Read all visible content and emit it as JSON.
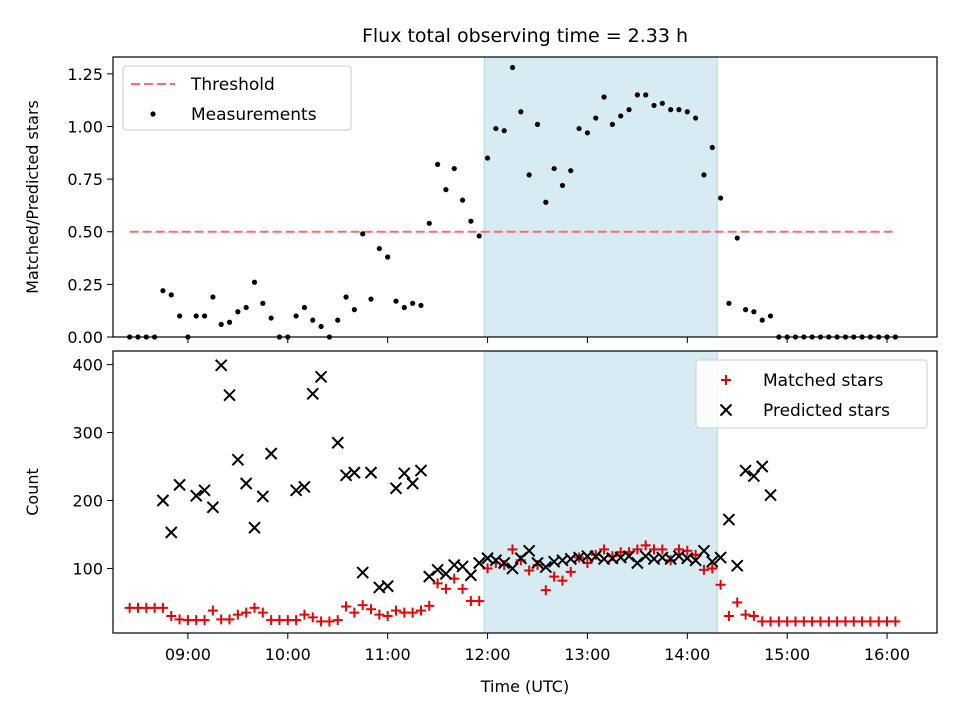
{
  "title": "Flux total observing time = 2.33 h",
  "colors": {
    "threshold": "#ff6b6b",
    "measurement": "#000000",
    "matched": "#ee0000",
    "predicted": "#000000",
    "shade": "#add8e6"
  },
  "chart_data": [
    {
      "type": "scatter",
      "panel": "top",
      "ylabel": "Matched/Predicted stars",
      "ylim": [
        0,
        1.33
      ],
      "yticks": [
        "0.00",
        "0.25",
        "0.50",
        "0.75",
        "1.00",
        "1.25"
      ],
      "xlim": [
        "08:15",
        "16:30"
      ],
      "grid": false,
      "legend_position": "top-left",
      "threshold": {
        "name": "Threshold",
        "value": 0.5,
        "x_range": [
          "08:25",
          "16:05"
        ]
      },
      "shaded_interval": [
        "11:58",
        "14:18"
      ],
      "series": [
        {
          "name": "Measurements",
          "points": [
            [
              "08:25",
              0
            ],
            [
              "08:30",
              0
            ],
            [
              "08:35",
              0
            ],
            [
              "08:40",
              0
            ],
            [
              "08:45",
              0.22
            ],
            [
              "08:50",
              0.2
            ],
            [
              "08:55",
              0.1
            ],
            [
              "09:00",
              0
            ],
            [
              "09:05",
              0.1
            ],
            [
              "09:10",
              0.1
            ],
            [
              "09:15",
              0.19
            ],
            [
              "09:20",
              0.06
            ],
            [
              "09:25",
              0.07
            ],
            [
              "09:30",
              0.12
            ],
            [
              "09:35",
              0.14
            ],
            [
              "09:40",
              0.26
            ],
            [
              "09:45",
              0.16
            ],
            [
              "09:50",
              0.09
            ],
            [
              "09:55",
              0
            ],
            [
              "10:00",
              0
            ],
            [
              "10:05",
              0.1
            ],
            [
              "10:10",
              0.14
            ],
            [
              "10:15",
              0.08
            ],
            [
              "10:20",
              0.05
            ],
            [
              "10:25",
              0
            ],
            [
              "10:30",
              0.08
            ],
            [
              "10:35",
              0.19
            ],
            [
              "10:40",
              0.13
            ],
            [
              "10:45",
              0.49
            ],
            [
              "10:50",
              0.18
            ],
            [
              "10:55",
              0.42
            ],
            [
              "11:00",
              0.38
            ],
            [
              "11:05",
              0.17
            ],
            [
              "11:10",
              0.14
            ],
            [
              "11:15",
              0.16
            ],
            [
              "11:20",
              0.15
            ],
            [
              "11:25",
              0.54
            ],
            [
              "11:30",
              0.82
            ],
            [
              "11:35",
              0.7
            ],
            [
              "11:40",
              0.8
            ],
            [
              "11:45",
              0.65
            ],
            [
              "11:50",
              0.55
            ],
            [
              "11:55",
              0.48
            ],
            [
              "12:00",
              0.85
            ],
            [
              "12:05",
              0.99
            ],
            [
              "12:10",
              0.98
            ],
            [
              "12:15",
              1.28
            ],
            [
              "12:20",
              1.07
            ],
            [
              "12:25",
              0.77
            ],
            [
              "12:30",
              1.01
            ],
            [
              "12:35",
              0.64
            ],
            [
              "12:40",
              0.8
            ],
            [
              "12:45",
              0.72
            ],
            [
              "12:50",
              0.79
            ],
            [
              "12:55",
              0.99
            ],
            [
              "13:00",
              0.97
            ],
            [
              "13:05",
              1.04
            ],
            [
              "13:10",
              1.14
            ],
            [
              "13:15",
              1.01
            ],
            [
              "13:20",
              1.05
            ],
            [
              "13:25",
              1.08
            ],
            [
              "13:30",
              1.15
            ],
            [
              "13:35",
              1.15
            ],
            [
              "13:40",
              1.1
            ],
            [
              "13:45",
              1.11
            ],
            [
              "13:50",
              1.08
            ],
            [
              "13:55",
              1.08
            ],
            [
              "14:00",
              1.07
            ],
            [
              "14:05",
              1.04
            ],
            [
              "14:10",
              0.77
            ],
            [
              "14:15",
              0.9
            ],
            [
              "14:20",
              0.66
            ],
            [
              "14:25",
              0.16
            ],
            [
              "14:30",
              0.47
            ],
            [
              "14:35",
              0.13
            ],
            [
              "14:40",
              0.12
            ],
            [
              "14:45",
              0.08
            ],
            [
              "14:50",
              0.1
            ],
            [
              "14:55",
              0
            ],
            [
              "15:00",
              0
            ],
            [
              "15:05",
              0
            ],
            [
              "15:10",
              0
            ],
            [
              "15:15",
              0
            ],
            [
              "15:20",
              0
            ],
            [
              "15:25",
              0
            ],
            [
              "15:30",
              0
            ],
            [
              "15:35",
              0
            ],
            [
              "15:40",
              0
            ],
            [
              "15:45",
              0
            ],
            [
              "15:50",
              0
            ],
            [
              "15:55",
              0
            ],
            [
              "16:00",
              0
            ],
            [
              "16:05",
              0
            ]
          ]
        }
      ]
    },
    {
      "type": "scatter",
      "panel": "bottom",
      "xlabel": "Time (UTC)",
      "ylabel": "Count",
      "ylim": [
        5,
        420
      ],
      "yticks": [
        "100",
        "200",
        "300",
        "400"
      ],
      "xlim": [
        "08:15",
        "16:30"
      ],
      "xticks": [
        "09:00",
        "10:00",
        "11:00",
        "12:00",
        "13:00",
        "14:00",
        "15:00",
        "16:00"
      ],
      "grid": false,
      "legend_position": "top-right",
      "shaded_interval": [
        "11:58",
        "14:18"
      ],
      "series": [
        {
          "name": "Matched stars",
          "points": [
            [
              "08:25",
              42
            ],
            [
              "08:30",
              42
            ],
            [
              "08:35",
              42
            ],
            [
              "08:40",
              42
            ],
            [
              "08:45",
              42
            ],
            [
              "08:50",
              30
            ],
            [
              "08:55",
              25
            ],
            [
              "09:00",
              24
            ],
            [
              "09:05",
              24
            ],
            [
              "09:10",
              24
            ],
            [
              "09:15",
              38
            ],
            [
              "09:20",
              25
            ],
            [
              "09:25",
              25
            ],
            [
              "09:30",
              32
            ],
            [
              "09:35",
              35
            ],
            [
              "09:40",
              42
            ],
            [
              "09:45",
              35
            ],
            [
              "09:50",
              24
            ],
            [
              "09:55",
              24
            ],
            [
              "10:00",
              24
            ],
            [
              "10:05",
              24
            ],
            [
              "10:10",
              32
            ],
            [
              "10:15",
              28
            ],
            [
              "10:20",
              22
            ],
            [
              "10:25",
              22
            ],
            [
              "10:30",
              24
            ],
            [
              "10:35",
              44
            ],
            [
              "10:40",
              35
            ],
            [
              "10:45",
              46
            ],
            [
              "10:50",
              40
            ],
            [
              "10:55",
              32
            ],
            [
              "11:00",
              30
            ],
            [
              "11:05",
              38
            ],
            [
              "11:10",
              35
            ],
            [
              "11:15",
              35
            ],
            [
              "11:20",
              38
            ],
            [
              "11:25",
              45
            ],
            [
              "11:30",
              78
            ],
            [
              "11:35",
              70
            ],
            [
              "11:40",
              85
            ],
            [
              "11:45",
              70
            ],
            [
              "11:50",
              52
            ],
            [
              "11:55",
              52
            ],
            [
              "12:00",
              100
            ],
            [
              "12:05",
              108
            ],
            [
              "12:10",
              105
            ],
            [
              "12:15",
              128
            ],
            [
              "12:20",
              112
            ],
            [
              "12:25",
              97
            ],
            [
              "12:30",
              105
            ],
            [
              "12:35",
              68
            ],
            [
              "12:40",
              88
            ],
            [
              "12:45",
              82
            ],
            [
              "12:50",
              95
            ],
            [
              "12:55",
              116
            ],
            [
              "13:00",
              108
            ],
            [
              "13:05",
              120
            ],
            [
              "13:10",
              128
            ],
            [
              "13:15",
              118
            ],
            [
              "13:20",
              124
            ],
            [
              "13:25",
              124
            ],
            [
              "13:30",
              128
            ],
            [
              "13:35",
              134
            ],
            [
              "13:40",
              128
            ],
            [
              "13:45",
              128
            ],
            [
              "13:50",
              112
            ],
            [
              "13:55",
              128
            ],
            [
              "14:00",
              126
            ],
            [
              "14:05",
              120
            ],
            [
              "14:10",
              98
            ],
            [
              "14:15",
              100
            ],
            [
              "14:20",
              76
            ],
            [
              "14:25",
              30
            ],
            [
              "14:30",
              50
            ],
            [
              "14:35",
              32
            ],
            [
              "14:40",
              30
            ],
            [
              "14:45",
              22
            ],
            [
              "14:50",
              22
            ],
            [
              "14:55",
              22
            ],
            [
              "15:00",
              22
            ],
            [
              "15:05",
              22
            ],
            [
              "15:10",
              22
            ],
            [
              "15:15",
              22
            ],
            [
              "15:20",
              22
            ],
            [
              "15:25",
              22
            ],
            [
              "15:30",
              22
            ],
            [
              "15:35",
              22
            ],
            [
              "15:40",
              22
            ],
            [
              "15:45",
              22
            ],
            [
              "15:50",
              22
            ],
            [
              "15:55",
              22
            ],
            [
              "16:00",
              22
            ],
            [
              "16:05",
              22
            ]
          ]
        },
        {
          "name": "Predicted stars",
          "points": [
            [
              "08:45",
              200
            ],
            [
              "08:50",
              153
            ],
            [
              "08:55",
              223
            ],
            [
              "09:05",
              207
            ],
            [
              "09:10",
              215
            ],
            [
              "09:15",
              190
            ],
            [
              "09:20",
              399
            ],
            [
              "09:25",
              355
            ],
            [
              "09:30",
              260
            ],
            [
              "09:35",
              225
            ],
            [
              "09:40",
              160
            ],
            [
              "09:45",
              206
            ],
            [
              "09:50",
              269
            ],
            [
              "10:05",
              215
            ],
            [
              "10:10",
              220
            ],
            [
              "10:15",
              357
            ],
            [
              "10:20",
              382
            ],
            [
              "10:30",
              285
            ],
            [
              "10:35",
              237
            ],
            [
              "10:40",
              241
            ],
            [
              "10:45",
              94
            ],
            [
              "10:50",
              241
            ],
            [
              "10:55",
              72
            ],
            [
              "11:00",
              74
            ],
            [
              "11:05",
              218
            ],
            [
              "11:10",
              240
            ],
            [
              "11:15",
              225
            ],
            [
              "11:20",
              244
            ],
            [
              "11:25",
              88
            ],
            [
              "11:30",
              98
            ],
            [
              "11:35",
              92
            ],
            [
              "11:40",
              105
            ],
            [
              "11:45",
              103
            ],
            [
              "11:50",
              90
            ],
            [
              "11:55",
              108
            ],
            [
              "12:00",
              115
            ],
            [
              "12:05",
              112
            ],
            [
              "12:10",
              108
            ],
            [
              "12:15",
              100
            ],
            [
              "12:20",
              115
            ],
            [
              "12:25",
              126
            ],
            [
              "12:30",
              108
            ],
            [
              "12:35",
              102
            ],
            [
              "12:40",
              110
            ],
            [
              "12:45",
              112
            ],
            [
              "12:50",
              114
            ],
            [
              "12:55",
              116
            ],
            [
              "13:00",
              118
            ],
            [
              "13:05",
              118
            ],
            [
              "13:10",
              114
            ],
            [
              "13:15",
              115
            ],
            [
              "13:20",
              116
            ],
            [
              "13:25",
              118
            ],
            [
              "13:30",
              108
            ],
            [
              "13:35",
              118
            ],
            [
              "13:40",
              114
            ],
            [
              "13:45",
              116
            ],
            [
              "13:50",
              114
            ],
            [
              "13:55",
              118
            ],
            [
              "14:00",
              115
            ],
            [
              "14:05",
              112
            ],
            [
              "14:10",
              126
            ],
            [
              "14:15",
              110
            ],
            [
              "14:20",
              116
            ],
            [
              "14:25",
              172
            ],
            [
              "14:30",
              104
            ],
            [
              "14:35",
              244
            ],
            [
              "14:40",
              236
            ],
            [
              "14:45",
              250
            ],
            [
              "14:50",
              208
            ]
          ]
        }
      ]
    }
  ]
}
